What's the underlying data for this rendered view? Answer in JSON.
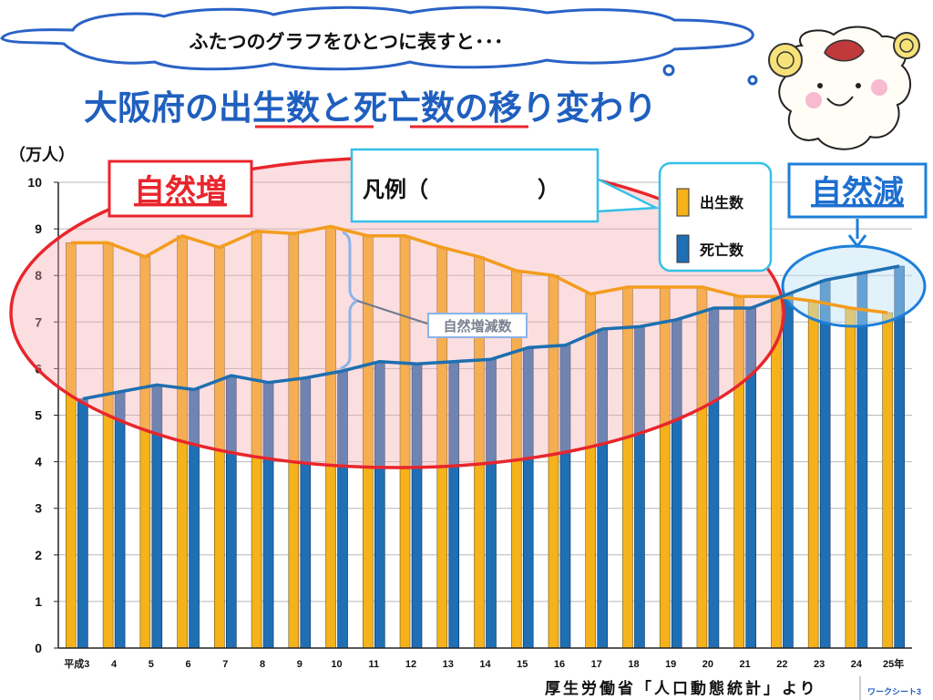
{
  "cloud_text": "ふたつのグラフをひとつに表すと･･･",
  "title": {
    "part1": "大阪府の",
    "part2": "出生数",
    "part3": "と",
    "part4": "死亡数",
    "part5": "の移り変わり"
  },
  "unit_label": "（万人）",
  "label_natural_increase": "自然増",
  "label_natural_decrease": "自然減",
  "legend_box_text": "凡例（　　　　　）",
  "callout_text": "自然増減数",
  "source": "厚生労働省「人口動態統計」より",
  "worksheet": "ワークシート3",
  "colors": {
    "births": "#F5B21A",
    "deaths": "#1F6FB5",
    "births_line": "#F39C1E",
    "deaths_line": "#1E6FB0",
    "increase_circle": "#E8262C",
    "decrease_circle": "#1E7FD8",
    "title_blue": "#1F5FBF"
  },
  "chart_data": {
    "type": "bar",
    "categories": [
      "平成3",
      "4",
      "5",
      "6",
      "7",
      "8",
      "9",
      "10",
      "11",
      "12",
      "13",
      "14",
      "15",
      "16",
      "17",
      "18",
      "19",
      "20",
      "21",
      "22",
      "23",
      "24",
      "25年"
    ],
    "series": [
      {
        "name": "出生数",
        "values": [
          8.7,
          8.7,
          8.4,
          8.85,
          8.6,
          8.95,
          8.9,
          9.05,
          8.85,
          8.85,
          8.6,
          8.4,
          8.1,
          8.0,
          7.6,
          7.75,
          7.75,
          7.75,
          7.55,
          7.55,
          7.45,
          7.3,
          7.2
        ]
      },
      {
        "name": "死亡数",
        "values": [
          5.35,
          5.5,
          5.65,
          5.55,
          5.85,
          5.7,
          5.8,
          5.95,
          6.15,
          6.1,
          6.15,
          6.2,
          6.45,
          6.5,
          6.85,
          6.9,
          7.05,
          7.3,
          7.3,
          7.6,
          7.9,
          8.05,
          8.2
        ]
      }
    ],
    "ylim": [
      0,
      10
    ],
    "yticks": [
      "0",
      "1",
      "2",
      "3",
      "4",
      "5",
      "6",
      "7",
      "8",
      "9",
      "10"
    ],
    "legend": [
      "出生数",
      "死亡数"
    ]
  }
}
